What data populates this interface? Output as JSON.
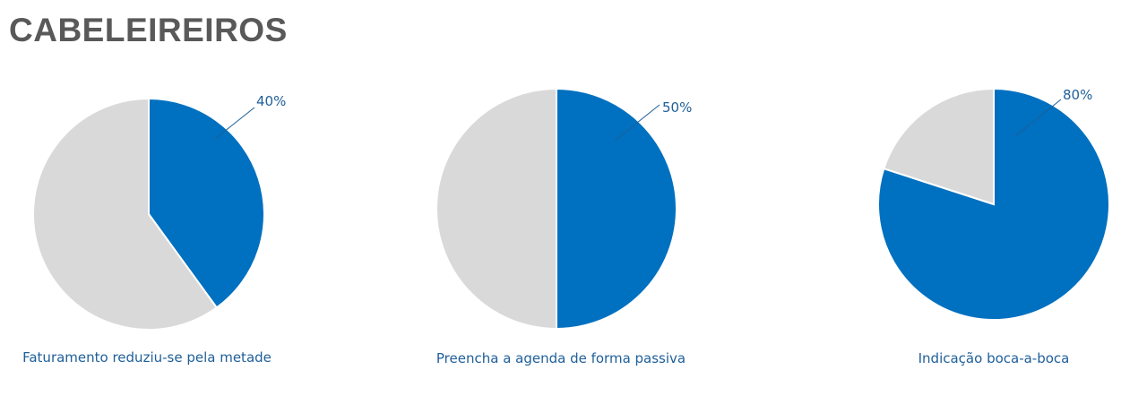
{
  "page": {
    "title": "CABELEIREIROS"
  },
  "colors": {
    "highlight": "#0070C0",
    "remainder": "#D9D9D9",
    "label": "#1F5F99",
    "title": "#595959"
  },
  "chart_data": [
    {
      "type": "pie",
      "title": "Faturamento reduziu-se pela metade",
      "slices": [
        {
          "value": 40,
          "label": "40%"
        },
        {
          "value": 60,
          "label": ""
        }
      ]
    },
    {
      "type": "pie",
      "title": "Preencha a agenda de forma passiva",
      "slices": [
        {
          "value": 50,
          "label": "50%"
        },
        {
          "value": 50,
          "label": ""
        }
      ]
    },
    {
      "type": "pie",
      "title": "Indicação boca-a-boca",
      "slices": [
        {
          "value": 80,
          "label": "80%"
        },
        {
          "value": 20,
          "label": ""
        }
      ]
    }
  ]
}
